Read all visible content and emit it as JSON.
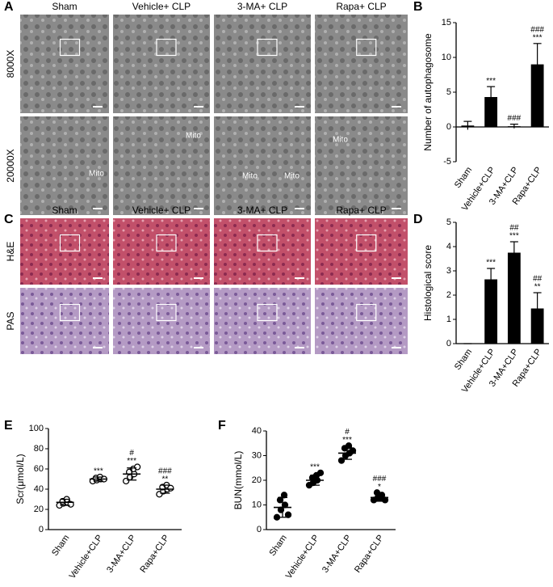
{
  "figure": {
    "letters": [
      "A",
      "B",
      "C",
      "D",
      "E",
      "F"
    ],
    "A": {
      "columns": [
        "Sham",
        "Vehicle+ CLP",
        "3-MA+ CLP",
        "Rapa+ CLP"
      ],
      "rows": [
        "8000X",
        "20000X"
      ],
      "mito": [
        "Mito",
        "Mito",
        "Mito",
        "Mito",
        "Mito"
      ]
    },
    "C": {
      "columns": [
        "Sham",
        "Vehicle+ CLP",
        "3-MA+ CLP",
        "Rapa+ CLP"
      ],
      "rows": [
        "H&E",
        "PAS"
      ]
    }
  },
  "chart_data": [
    {
      "type": "bar",
      "ylabel": "Number of autophagosome",
      "categories": [
        "Sham",
        "Vehicle+CLP",
        "3-MA+CLP",
        "Rapa+CLP"
      ],
      "values": [
        0.2,
        4.3,
        0.1,
        9
      ],
      "errors": [
        0.6,
        1.5,
        0.3,
        3
      ],
      "color": "#000000",
      "annotations": [
        [],
        [
          "***"
        ],
        [
          "###"
        ],
        [
          "###",
          "***"
        ]
      ],
      "ylim": [
        -5,
        15
      ],
      "yticks": [
        -5,
        0,
        5,
        10,
        15
      ]
    },
    {
      "type": "bar",
      "ylabel": "Histological score",
      "categories": [
        "Sham",
        "Vehicle+CLP",
        "3-MA+CLP",
        "Rapa+CLP"
      ],
      "values": [
        0,
        2.65,
        3.75,
        1.45
      ],
      "errors": [
        0,
        0.45,
        0.45,
        0.65
      ],
      "color": "#000000",
      "annotations": [
        [],
        [
          "***"
        ],
        [
          "##",
          "***"
        ],
        [
          "##",
          "**"
        ]
      ],
      "ylim": [
        0,
        5
      ],
      "yticks": [
        0,
        1,
        2,
        3,
        4,
        5
      ]
    },
    {
      "type": "dot",
      "ylabel": "Scr(μmol/L)",
      "categories": [
        "Sham",
        "Vehicle+CLP",
        "3-MA+CLP",
        "Rapa+CLP"
      ],
      "points": [
        [
          24,
          26,
          27,
          28,
          30,
          25
        ],
        [
          48,
          49,
          50,
          51,
          52,
          50
        ],
        [
          48,
          52,
          55,
          57,
          60,
          62
        ],
        [
          35,
          38,
          40,
          42,
          44,
          41
        ]
      ],
      "means": [
        27,
        50,
        55,
        40
      ],
      "errors": [
        3,
        2,
        6,
        4
      ],
      "color": "#000000",
      "annotations": [
        [],
        [
          "***"
        ],
        [
          "#",
          "***"
        ],
        [
          "###",
          "**"
        ]
      ],
      "ylim": [
        0,
        100
      ],
      "yticks": [
        0,
        20,
        40,
        60,
        80,
        100
      ]
    },
    {
      "type": "dot",
      "ylabel": "BUN(mmol/L)",
      "categories": [
        "Sham",
        "Vehicle+CLP",
        "3-MA+CLP",
        "Rapa+CLP"
      ],
      "points": [
        [
          5,
          8,
          10,
          12,
          14,
          6
        ],
        [
          18,
          19,
          20,
          21,
          22,
          23
        ],
        [
          28,
          30,
          31,
          33,
          34,
          32
        ],
        [
          12,
          13,
          14,
          15,
          13,
          12
        ]
      ],
      "means": [
        9,
        20,
        31,
        13
      ],
      "errors": [
        4,
        2,
        2.5,
        1.5
      ],
      "color": "#000000",
      "annotations": [
        [],
        [
          "***"
        ],
        [
          "#",
          "***"
        ],
        [
          "###",
          "*"
        ]
      ],
      "ylim": [
        0,
        40
      ],
      "yticks": [
        0,
        10,
        20,
        30,
        40
      ]
    }
  ]
}
